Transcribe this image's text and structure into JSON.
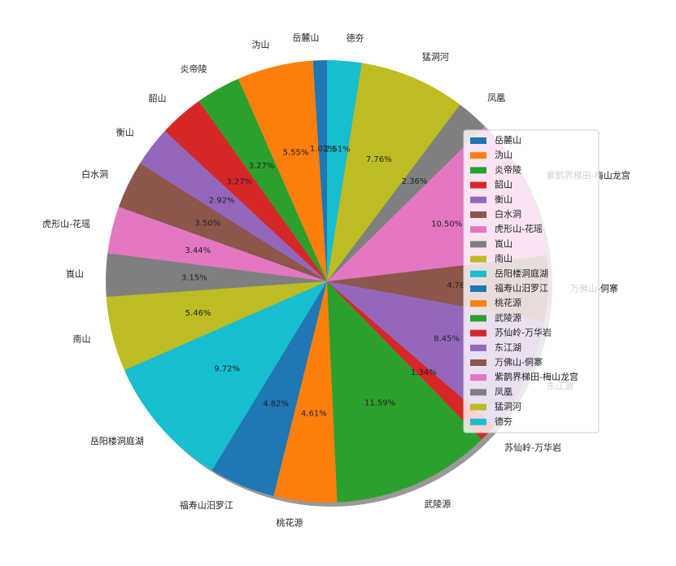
{
  "chart_data": {
    "type": "pie",
    "categories": [
      "岳麓山",
      "沩山",
      "炎帝陵",
      "韶山",
      "衡山",
      "白水洞",
      "虎形山-花瑶",
      "崀山",
      "南山",
      "岳阳楼洞庭湖",
      "福寿山汨罗江",
      "桃花源",
      "武陵源",
      "苏仙岭-万华岩",
      "东江湖",
      "万佛山-侗寨",
      "紫鹊界梯田-梅山龙宫",
      "凤凰",
      "猛洞河",
      "德夯"
    ],
    "values": [
      1.02,
      5.55,
      3.27,
      3.27,
      2.92,
      3.5,
      3.44,
      3.15,
      5.46,
      9.72,
      4.82,
      4.61,
      11.59,
      1.34,
      8.45,
      4.76,
      10.5,
      2.36,
      7.76,
      2.51
    ],
    "value_labels": [
      "1.02%",
      "5.55%",
      "3.27%",
      "3.27%",
      "2.92%",
      "3.50%",
      "3.44%",
      "3.15%",
      "5.46%",
      "9.72%",
      "4.82%",
      "4.61%",
      "11.59%",
      "1.34%",
      "8.45%",
      "4.76%",
      "10.50%",
      "2.36%",
      "7.76%",
      "2.51%"
    ],
    "colors": [
      "#1f77b4",
      "#ff7f0e",
      "#2ca02c",
      "#d62728",
      "#9467bd",
      "#8c564b",
      "#e377c2",
      "#7f7f7f",
      "#bcbd22",
      "#17becf",
      "#1f77b4",
      "#ff7f0e",
      "#2ca02c",
      "#d62728",
      "#9467bd",
      "#8c564b",
      "#e377c2",
      "#7f7f7f",
      "#bcbd22",
      "#17becf"
    ],
    "startangle": 90,
    "shadow": true,
    "legend": "right"
  }
}
